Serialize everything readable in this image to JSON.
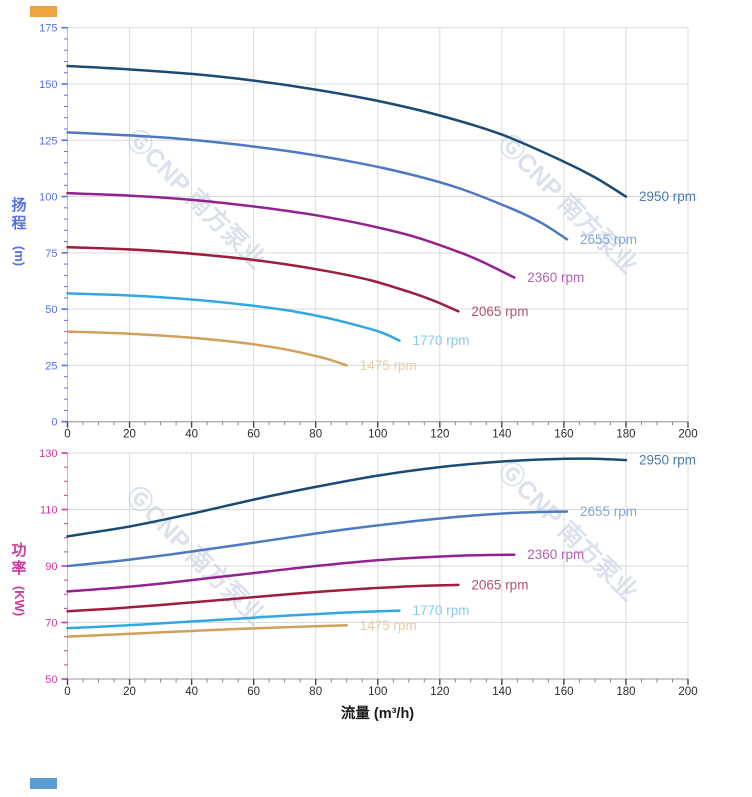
{
  "watermark": {
    "text": "ⒼCNP 南方泵业",
    "color": "#c9d2e4"
  },
  "decor": {
    "top_left_marker_color": "#eda33f",
    "bottom_left_marker_color": "#5b9bd5"
  },
  "chart_data": [
    {
      "type": "line",
      "name": "head-vs-flow",
      "y_title": "扬程 (m)",
      "y_title_char1": "扬",
      "y_title_char2": "程",
      "y_title_unit": "(m)",
      "axis_color": "#5571e2",
      "x_label_color": "#2b2b2b",
      "grid_color": "#dadada",
      "x_range": [
        0,
        200
      ],
      "y_range": [
        0,
        175
      ],
      "x_ticks": [
        0,
        20,
        40,
        60,
        80,
        100,
        120,
        140,
        160,
        180,
        200
      ],
      "y_ticks": [
        0,
        25,
        50,
        75,
        100,
        125,
        150,
        175
      ],
      "x_minor_step": 5,
      "y_minor_step": 5,
      "series": [
        {
          "label": "2950 rpm",
          "color": "#1b4b74",
          "label_color": "#4c7aa8",
          "points": [
            [
              0,
              158
            ],
            [
              20,
              156.5
            ],
            [
              40,
              154.5
            ],
            [
              60,
              151.5
            ],
            [
              80,
              147.5
            ],
            [
              100,
              142.5
            ],
            [
              120,
              136
            ],
            [
              140,
              127.5
            ],
            [
              160,
              115.5
            ],
            [
              170,
              108.5
            ],
            [
              180,
              100
            ]
          ]
        },
        {
          "label": "2655 rpm",
          "color": "#4f79be",
          "label_color": "#8ba6d4",
          "points": [
            [
              0,
              128.5
            ],
            [
              18,
              127.3
            ],
            [
              36,
              125.7
            ],
            [
              54,
              123.2
            ],
            [
              72,
              120
            ],
            [
              90,
              115.9
            ],
            [
              108,
              110.7
            ],
            [
              126,
              103.8
            ],
            [
              144,
              94.1
            ],
            [
              153,
              88.1
            ],
            [
              161,
              81
            ]
          ]
        },
        {
          "label": "2360 rpm",
          "color": "#93228f",
          "label_color": "#b264b2",
          "points": [
            [
              0,
              101.5
            ],
            [
              16,
              100.7
            ],
            [
              32,
              99.4
            ],
            [
              48,
              97.5
            ],
            [
              64,
              94.9
            ],
            [
              80,
              91.7
            ],
            [
              96,
              87.5
            ],
            [
              112,
              82.1
            ],
            [
              128,
              74.4
            ],
            [
              136,
              69.5
            ],
            [
              144,
              64
            ]
          ]
        },
        {
          "label": "2065 rpm",
          "color": "#9e1c3e",
          "label_color": "#b2566e",
          "points": [
            [
              0,
              77.5
            ],
            [
              14,
              76.9
            ],
            [
              28,
              75.9
            ],
            [
              42,
              74.4
            ],
            [
              56,
              72.5
            ],
            [
              70,
              70
            ],
            [
              84,
              66.8
            ],
            [
              98,
              62.7
            ],
            [
              112,
              56.8
            ],
            [
              119,
              53.2
            ],
            [
              126,
              49
            ]
          ]
        },
        {
          "label": "1770 rpm",
          "color": "#31a8e0",
          "label_color": "#8ccaec",
          "points": [
            [
              0,
              57
            ],
            [
              12,
              56.5
            ],
            [
              24,
              55.8
            ],
            [
              36,
              54.7
            ],
            [
              48,
              53.3
            ],
            [
              60,
              51.5
            ],
            [
              72,
              49.2
            ],
            [
              84,
              46
            ],
            [
              96,
              41.8
            ],
            [
              102,
              39.2
            ],
            [
              107,
              36
            ]
          ]
        },
        {
          "label": "1475 rpm",
          "color": "#d2a05c",
          "label_color": "#e6cba4",
          "points": [
            [
              0,
              40
            ],
            [
              10,
              39.6
            ],
            [
              20,
              39.1
            ],
            [
              30,
              38.3
            ],
            [
              40,
              37.3
            ],
            [
              50,
              36
            ],
            [
              60,
              34.4
            ],
            [
              70,
              32.2
            ],
            [
              80,
              29.2
            ],
            [
              85,
              27.3
            ],
            [
              90,
              25
            ]
          ]
        }
      ]
    },
    {
      "type": "line",
      "name": "power-vs-flow",
      "y_title": "功率 (KW)",
      "y_title_char1": "功",
      "y_title_char2": "率",
      "y_title_unit": "(KW)",
      "x_title": "流量 (m³/h)",
      "axis_color": "#cd3a9e",
      "x_label_color": "#2b2b2b",
      "grid_color": "#dadada",
      "x_range": [
        0,
        200
      ],
      "y_range": [
        50,
        130
      ],
      "x_ticks": [
        0,
        20,
        40,
        60,
        80,
        100,
        120,
        140,
        160,
        180,
        200
      ],
      "y_ticks": [
        50,
        70,
        90,
        110,
        130
      ],
      "x_minor_step": 5,
      "y_minor_step": 5,
      "series": [
        {
          "label": "2950 rpm",
          "color": "#1b4b74",
          "label_color": "#4c7aa8",
          "points": [
            [
              0,
              100.5
            ],
            [
              20,
              104
            ],
            [
              40,
              108.5
            ],
            [
              60,
              113.5
            ],
            [
              80,
              118
            ],
            [
              100,
              122
            ],
            [
              120,
              125
            ],
            [
              140,
              127
            ],
            [
              155,
              127.8
            ],
            [
              168,
              128
            ],
            [
              180,
              127.5
            ]
          ]
        },
        {
          "label": "2655 rpm",
          "color": "#4f79be",
          "label_color": "#8ba6d4",
          "points": [
            [
              0,
              90
            ],
            [
              18,
              92
            ],
            [
              36,
              94.5
            ],
            [
              54,
              97.3
            ],
            [
              72,
              100.2
            ],
            [
              90,
              103
            ],
            [
              108,
              105.4
            ],
            [
              126,
              107.4
            ],
            [
              144,
              108.8
            ],
            [
              161,
              109.3
            ]
          ]
        },
        {
          "label": "2360 rpm",
          "color": "#93228f",
          "label_color": "#b264b2",
          "points": [
            [
              0,
              81
            ],
            [
              16,
              82.3
            ],
            [
              32,
              84
            ],
            [
              48,
              86
            ],
            [
              64,
              88
            ],
            [
              80,
              90
            ],
            [
              96,
              91.7
            ],
            [
              112,
              92.9
            ],
            [
              128,
              93.7
            ],
            [
              144,
              94
            ]
          ]
        },
        {
          "label": "2065 rpm",
          "color": "#9e1c3e",
          "label_color": "#b2566e",
          "points": [
            [
              0,
              74
            ],
            [
              14,
              74.9
            ],
            [
              28,
              76
            ],
            [
              42,
              77.3
            ],
            [
              56,
              78.6
            ],
            [
              70,
              79.9
            ],
            [
              84,
              81.1
            ],
            [
              98,
              82.1
            ],
            [
              112,
              82.9
            ],
            [
              126,
              83.3
            ]
          ]
        },
        {
          "label": "1770 rpm",
          "color": "#31a8e0",
          "label_color": "#8ccaec",
          "points": [
            [
              0,
              68
            ],
            [
              12,
              68.6
            ],
            [
              24,
              69.3
            ],
            [
              36,
              70.1
            ],
            [
              48,
              70.9
            ],
            [
              60,
              71.7
            ],
            [
              72,
              72.5
            ],
            [
              84,
              73.2
            ],
            [
              96,
              73.8
            ],
            [
              107,
              74.2
            ]
          ]
        },
        {
          "label": "1475 rpm",
          "color": "#d2a05c",
          "label_color": "#e6cba4",
          "points": [
            [
              0,
              65
            ],
            [
              10,
              65.5
            ],
            [
              20,
              66
            ],
            [
              30,
              66.5
            ],
            [
              40,
              67
            ],
            [
              50,
              67.5
            ],
            [
              60,
              67.9
            ],
            [
              70,
              68.3
            ],
            [
              80,
              68.7
            ],
            [
              90,
              69
            ]
          ]
        }
      ]
    }
  ]
}
